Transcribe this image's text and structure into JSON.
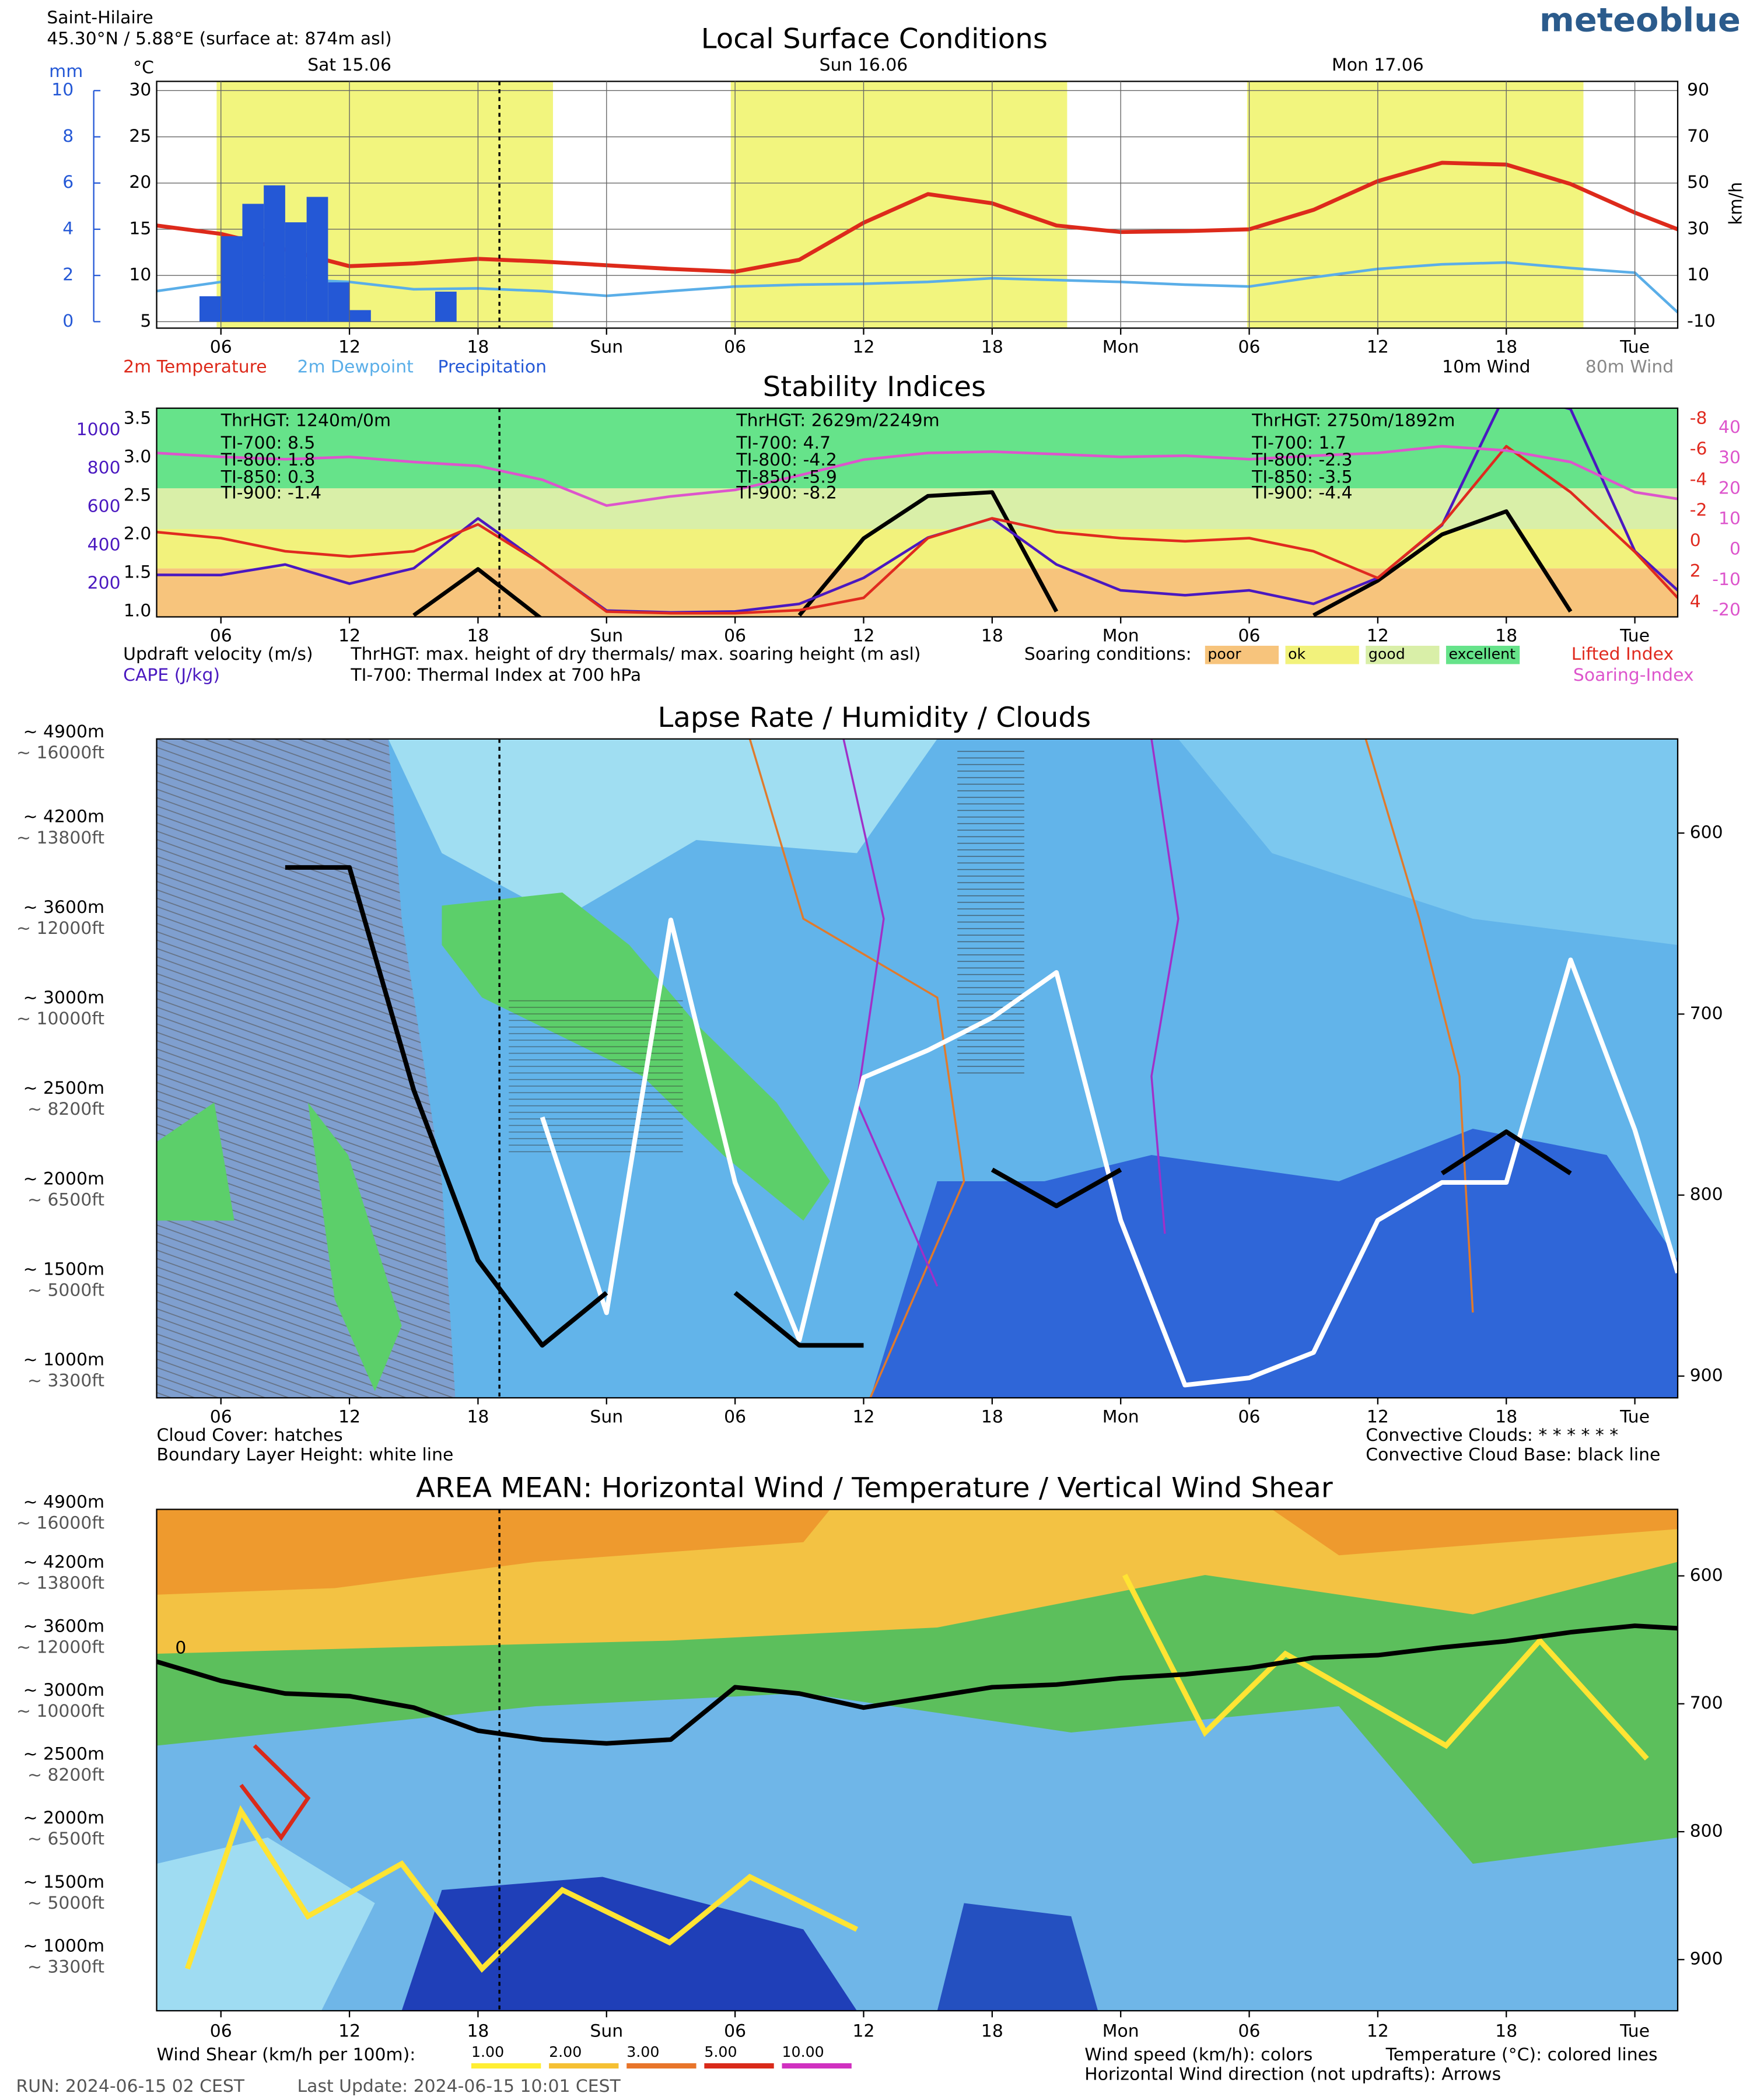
{
  "header": {
    "location": "Saint-Hilaire",
    "coords": "45.30°N / 5.88°E (surface at: 874m asl)",
    "brand": "meteoblue"
  },
  "footer": {
    "run": "RUN: 2024-06-15 02 CEST",
    "update": "Last Update: 2024-06-15 10:01 CEST"
  },
  "chart_data": [
    {
      "type": "line",
      "title": "Local Surface Conditions",
      "grid": true,
      "day_labels": [
        {
          "value": 12,
          "label": "Sat 15.06"
        },
        {
          "value": 36,
          "label": "Sun 16.06"
        },
        {
          "value": 60,
          "label": "Mon 17.06"
        }
      ],
      "xlim": [
        3,
        74
      ],
      "xticks": [
        {
          "value": 6,
          "label": "06"
        },
        {
          "value": 12,
          "label": "12"
        },
        {
          "value": 18,
          "label": "18"
        },
        {
          "value": 24,
          "label": "Sun"
        },
        {
          "value": 30,
          "label": "06"
        },
        {
          "value": 36,
          "label": "12"
        },
        {
          "value": 42,
          "label": "18"
        },
        {
          "value": 48,
          "label": "Mon"
        },
        {
          "value": 54,
          "label": "06"
        },
        {
          "value": 60,
          "label": "12"
        },
        {
          "value": 66,
          "label": "18"
        },
        {
          "value": 72,
          "label": "Tue"
        }
      ],
      "daylight": [
        [
          5.8,
          21.5
        ],
        [
          29.8,
          45.5
        ],
        [
          53.9,
          69.6
        ]
      ],
      "now": 19,
      "units": {
        "y": "°C",
        "y2": "mm",
        "y3": "km/h"
      },
      "ylim": [
        4.3,
        31
      ],
      "yticks": [
        5,
        10,
        15,
        20,
        25,
        30
      ],
      "y2lim": [
        -0.28,
        10.4
      ],
      "y2ticks": [
        0,
        2,
        4,
        6,
        8,
        10
      ],
      "y3lim": [
        -12.8,
        94
      ],
      "y3ticks": [
        -10,
        10,
        30,
        50,
        70,
        90
      ],
      "x": [
        3,
        6,
        9,
        12,
        15,
        18,
        21,
        24,
        27,
        30,
        33,
        36,
        39,
        42,
        45,
        48,
        51,
        54,
        57,
        60,
        63,
        66,
        69,
        72,
        74
      ],
      "series": [
        {
          "name": "2m Temperature",
          "color": "#dd2a1b",
          "values": [
            15.4,
            14.5,
            12.8,
            11,
            11.3,
            11.8,
            11.5,
            11.1,
            10.7,
            10.4,
            11.7,
            15.7,
            18.8,
            17.8,
            15.4,
            14.7,
            14.8,
            15,
            17.1,
            20.2,
            22.2,
            22,
            19.9,
            16.8,
            15
          ]
        },
        {
          "name": "2m Dewpoint",
          "color": "#5aaee8",
          "values": [
            8.3,
            9.3,
            9.6,
            9.3,
            8.5,
            8.6,
            8.3,
            7.8,
            8.3,
            8.8,
            9,
            9.1,
            9.3,
            9.7,
            9.5,
            9.3,
            9,
            8.8,
            9.8,
            10.7,
            11.2,
            11.4,
            10.8,
            10.3,
            6
          ]
        },
        {
          "name": "Precipitation",
          "color": "#2458d6",
          "type": "bar",
          "axis": "y2",
          "x": [
            5,
            6,
            7,
            8,
            9,
            10,
            11,
            12,
            16
          ],
          "values": [
            1.1,
            3.7,
            5.1,
            5.9,
            4.3,
            5.4,
            1.7,
            0.5,
            1.3
          ]
        }
      ],
      "wind_labels": [
        "10m Wind",
        "80m Wind"
      ]
    },
    {
      "type": "line",
      "title": "Stability Indices",
      "xlim": [
        3,
        74
      ],
      "xticks": [
        {
          "value": 6,
          "label": "06"
        },
        {
          "value": 12,
          "label": "12"
        },
        {
          "value": 18,
          "label": "18"
        },
        {
          "value": 24,
          "label": "Sun"
        },
        {
          "value": 30,
          "label": "06"
        },
        {
          "value": 36,
          "label": "12"
        },
        {
          "value": 42,
          "label": "18"
        },
        {
          "value": 48,
          "label": "Mon"
        },
        {
          "value": 54,
          "label": "06"
        },
        {
          "value": 60,
          "label": "12"
        },
        {
          "value": 66,
          "label": "18"
        },
        {
          "value": 72,
          "label": "Tue"
        }
      ],
      "now": 19,
      "ylim": [
        0.93,
        3.64
      ],
      "yticks": [
        {
          "value": 1,
          "label": "1.0"
        },
        1.5,
        {
          "value": 2,
          "label": "2.0"
        },
        2.5,
        {
          "value": 3,
          "label": "3.0"
        },
        3.5
      ],
      "y2lim": [
        27,
        1115
      ],
      "y2ticks": [
        200,
        400,
        600,
        800,
        1000
      ],
      "y3lim": [
        4.94,
        -8.69
      ],
      "y3ticks": [
        -8,
        -6,
        -4,
        -2,
        0,
        2,
        4
      ],
      "y4lim": [
        -22.1,
        46.5
      ],
      "y4ticks": [
        40,
        30,
        20,
        10,
        0,
        -10,
        -20
      ],
      "bands_title": "Soaring conditions:",
      "bands": [
        {
          "name": "poor",
          "color": "#f7c47c",
          "from": 0.93,
          "to": 1.56
        },
        {
          "name": "ok",
          "color": "#f2f27c",
          "from": 1.56,
          "to": 2.07
        },
        {
          "name": "good",
          "color": "#d9efa8",
          "from": 2.07,
          "to": 2.6
        },
        {
          "name": "excellent",
          "color": "#66e38a",
          "from": 2.6,
          "to": 3.64
        }
      ],
      "annotations": [
        [
          "ThrHGT: 1240m/0m",
          "TI-700:  8.5",
          "TI-800:  1.8",
          "TI-850:  0.3",
          "TI-900:  -1.4"
        ],
        [
          "ThrHGT: 2629m/2249m",
          "TI-700:  4.7",
          "TI-800:  -4.2",
          "TI-850:  -5.9",
          "TI-900:  -8.2"
        ],
        [
          "ThrHGT: 2750m/1892m",
          "TI-700:  1.7",
          "TI-800:  -2.3",
          "TI-850:  -3.5",
          "TI-900:  -4.4"
        ]
      ],
      "notes": [
        "ThrHGT: max. height of dry thermals/ max. soaring height (m asl)",
        "TI-700: Thermal Index at 700 hPa"
      ],
      "x": [
        3,
        6,
        9,
        12,
        15,
        18,
        21,
        24,
        27,
        30,
        33,
        36,
        39,
        42,
        45,
        48,
        51,
        54,
        57,
        60,
        63,
        66,
        69,
        72,
        74
      ],
      "series": [
        {
          "name": "Updraft velocity (m/s)",
          "color": "#000000",
          "values": [
            null,
            null,
            null,
            null,
            0.95,
            1.55,
            0.9,
            null,
            null,
            null,
            0.95,
            1.95,
            2.5,
            2.55,
            1.0,
            null,
            null,
            null,
            0.95,
            1.4,
            2.0,
            2.3,
            1.0,
            null,
            null
          ]
        },
        {
          "name": "CAPE (J/kg)",
          "color": "#4a18c0",
          "axis": "y2",
          "values": [
            246,
            245,
            300,
            200,
            280,
            540,
            300,
            60,
            50,
            55,
            95,
            230,
            440,
            540,
            300,
            165,
            140,
            165,
            95,
            230,
            505,
            1200,
            1110,
            370,
            165
          ]
        },
        {
          "name": "Lifted Index",
          "color": "#e02a1f",
          "axis": "y3",
          "values": [
            -0.6,
            -0.2,
            0.65,
            1.0,
            0.65,
            -1.1,
            1.5,
            4.6,
            4.7,
            4.7,
            4.5,
            3.7,
            -0.2,
            -1.5,
            -0.6,
            -0.2,
            0,
            -0.2,
            0.65,
            2.4,
            -1.1,
            -6.2,
            -3.2,
            0.7,
            3.7
          ]
        },
        {
          "name": "Soaring-Index",
          "color": "#dd55cc",
          "axis": "y4",
          "values": [
            31.8,
            30.5,
            29.7,
            30.5,
            28.8,
            27.5,
            23,
            14.5,
            17.5,
            19.6,
            24.4,
            29.6,
            31.8,
            32.2,
            31.4,
            30.5,
            30.9,
            29.7,
            30.9,
            31.8,
            34,
            32.6,
            28.8,
            18.9,
            16.7
          ]
        }
      ]
    },
    {
      "type": "contour",
      "title": "Lapse Rate / Humidity / Clouds",
      "xlim": [
        3,
        74
      ],
      "xticks": [
        {
          "value": 6,
          "label": "06"
        },
        {
          "value": 12,
          "label": "12"
        },
        {
          "value": 18,
          "label": "18"
        },
        {
          "value": 24,
          "label": "Sun"
        },
        {
          "value": 30,
          "label": "06"
        },
        {
          "value": 36,
          "label": "12"
        },
        {
          "value": 42,
          "label": "18"
        },
        {
          "value": 48,
          "label": "Mon"
        },
        {
          "value": 54,
          "label": "06"
        },
        {
          "value": 60,
          "label": "12"
        },
        {
          "value": 66,
          "label": "18"
        },
        {
          "value": 72,
          "label": "Tue"
        }
      ],
      "now": 19,
      "ylim": [
        912,
        548
      ],
      "yticks": [
        {
          "value": 548,
          "label": "~ 4900m"
        },
        {
          "value": 595,
          "label": "~ 4200m"
        },
        {
          "value": 645,
          "label": "~ 3600m"
        },
        {
          "value": 695,
          "label": "~ 3000m"
        },
        {
          "value": 745,
          "label": "~ 2500m"
        },
        {
          "value": 795,
          "label": "~ 2000m"
        },
        {
          "value": 845,
          "label": "~ 1500m"
        },
        {
          "value": 895,
          "label": "~ 1000m"
        }
      ],
      "yticks_ft": [
        {
          "value": 548,
          "label": "~ 16000ft"
        },
        {
          "value": 595,
          "label": "~ 13800ft"
        },
        {
          "value": 645,
          "label": "~ 12000ft"
        },
        {
          "value": 695,
          "label": "~ 10000ft"
        },
        {
          "value": 745,
          "label": "~ 8200ft"
        },
        {
          "value": 795,
          "label": "~ 6500ft"
        },
        {
          "value": 845,
          "label": "~ 5000ft"
        },
        {
          "value": 895,
          "label": "~ 3300ft"
        }
      ],
      "y2ticks": [
        600,
        700,
        800,
        900
      ],
      "x": [
        3,
        6,
        9,
        12,
        15,
        18,
        21,
        24,
        27,
        30,
        33,
        36,
        39,
        42,
        45,
        48,
        51,
        54,
        57,
        60,
        63,
        66,
        69,
        72,
        74
      ],
      "series": [
        {
          "name": "Boundary Layer Height",
          "color": "#ffffff",
          "values": [
            null,
            null,
            null,
            null,
            null,
            null,
            757,
            865,
            648,
            793,
            880,
            735,
            720,
            702,
            677,
            814,
            905,
            901,
            887,
            814,
            793,
            793,
            670,
            764,
            843
          ]
        },
        {
          "name": "Convective Cloud Base",
          "color": "#000000",
          "values": [
            null,
            null,
            619,
            619,
            742,
            836,
            883,
            854,
            null,
            854,
            883,
            883,
            null,
            786,
            806,
            786,
            null,
            null,
            null,
            null,
            788,
            765,
            788,
            null,
            null
          ]
        }
      ],
      "notes": [
        "Cloud Cover: hatches",
        "Boundary Layer Height: white line",
        "Convective Clouds: * * * * * *",
        "Convective Cloud Base: black line"
      ]
    },
    {
      "type": "contour",
      "title": "AREA MEAN: Horizontal Wind / Temperature / Vertical Wind Shear",
      "xlim": [
        3,
        74
      ],
      "xticks": [
        {
          "value": 6,
          "label": "06"
        },
        {
          "value": 12,
          "label": "12"
        },
        {
          "value": 18,
          "label": "18"
        },
        {
          "value": 24,
          "label": "Sun"
        },
        {
          "value": 30,
          "label": "06"
        },
        {
          "value": 36,
          "label": "12"
        },
        {
          "value": 42,
          "label": "18"
        },
        {
          "value": 48,
          "label": "Mon"
        },
        {
          "value": 54,
          "label": "06"
        },
        {
          "value": 60,
          "label": "12"
        },
        {
          "value": 66,
          "label": "18"
        },
        {
          "value": 72,
          "label": "Tue"
        }
      ],
      "now": 19,
      "ylim": [
        940,
        548
      ],
      "yticks": [
        {
          "value": 548,
          "label": "~ 4900m"
        },
        {
          "value": 595,
          "label": "~ 4200m"
        },
        {
          "value": 645,
          "label": "~ 3600m"
        },
        {
          "value": 695,
          "label": "~ 3000m"
        },
        {
          "value": 745,
          "label": "~ 2500m"
        },
        {
          "value": 795,
          "label": "~ 2000m"
        },
        {
          "value": 845,
          "label": "~ 1500m"
        },
        {
          "value": 895,
          "label": "~ 1000m"
        }
      ],
      "yticks_ft": [
        {
          "value": 548,
          "label": "~ 16000ft"
        },
        {
          "value": 595,
          "label": "~ 13800ft"
        },
        {
          "value": 645,
          "label": "~ 12000ft"
        },
        {
          "value": 695,
          "label": "~ 10000ft"
        },
        {
          "value": 745,
          "label": "~ 8200ft"
        },
        {
          "value": 795,
          "label": "~ 6500ft"
        },
        {
          "value": 845,
          "label": "~ 5000ft"
        },
        {
          "value": 895,
          "label": "~ 3300ft"
        }
      ],
      "y2ticks": [
        600,
        700,
        800,
        900
      ],
      "x": [
        3,
        6,
        9,
        12,
        15,
        18,
        21,
        24,
        27,
        30,
        33,
        36,
        39,
        42,
        45,
        48,
        51,
        54,
        57,
        60,
        63,
        66,
        69,
        72,
        74
      ],
      "series": [
        {
          "name": "0",
          "color": "#000000",
          "values": [
            667,
            682,
            692,
            694,
            703,
            721,
            728,
            731,
            728,
            687,
            692,
            703,
            695,
            687,
            685,
            680,
            677,
            672,
            664,
            662,
            656,
            651,
            644,
            639,
            641
          ]
        }
      ],
      "shear_legend": {
        "title": "Wind Shear (km/h per 100m):",
        "items": [
          {
            "label": "1.00",
            "color": "#ffee33"
          },
          {
            "label": "2.00",
            "color": "#f5c033"
          },
          {
            "label": "3.00",
            "color": "#e8752a"
          },
          {
            "label": "5.00",
            "color": "#d92a1a"
          },
          {
            "label": "10.00",
            "color": "#d030c0"
          }
        ]
      },
      "notes": [
        "Wind speed (km/h): colors",
        "Horizontal Wind direction (not updrafts): Arrows",
        "Temperature (°C): colored lines"
      ]
    }
  ]
}
